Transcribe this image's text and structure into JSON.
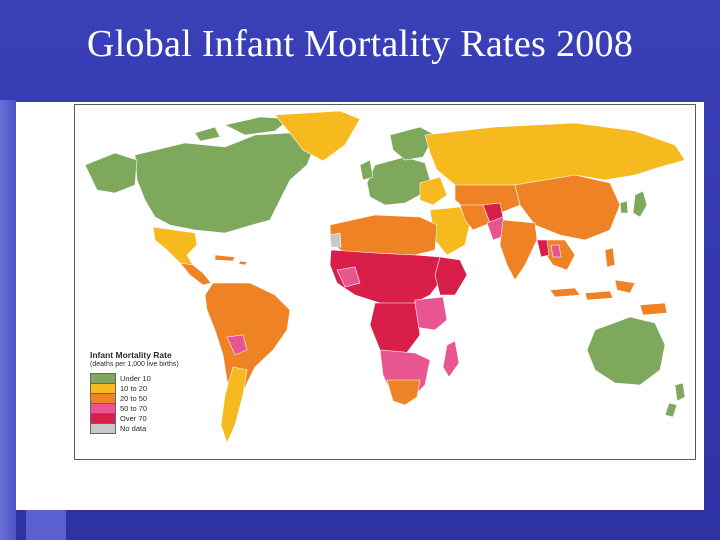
{
  "slide": {
    "title": "Global Infant Mortality Rates 2008"
  },
  "legend": {
    "title": "Infant Mortality Rate",
    "subtitle": "(deaths per 1,000 live births)",
    "items": [
      {
        "label": "Under 10",
        "color": "#7ea85c"
      },
      {
        "label": "10 to 20",
        "color": "#f6b91e"
      },
      {
        "label": "20 to 50",
        "color": "#ef8224"
      },
      {
        "label": "50 to 70",
        "color": "#e85591"
      },
      {
        "label": "Over 70",
        "color": "#d81e49"
      },
      {
        "label": "No data",
        "color": "#c8c8c8"
      }
    ]
  },
  "colors": {
    "under10": "#7ea85c",
    "r10to20": "#f6b91e",
    "r20to50": "#ef8224",
    "r50to70": "#e85591",
    "over70": "#d81e49",
    "nodata": "#c8c8c8",
    "background": "#3a40b8"
  }
}
